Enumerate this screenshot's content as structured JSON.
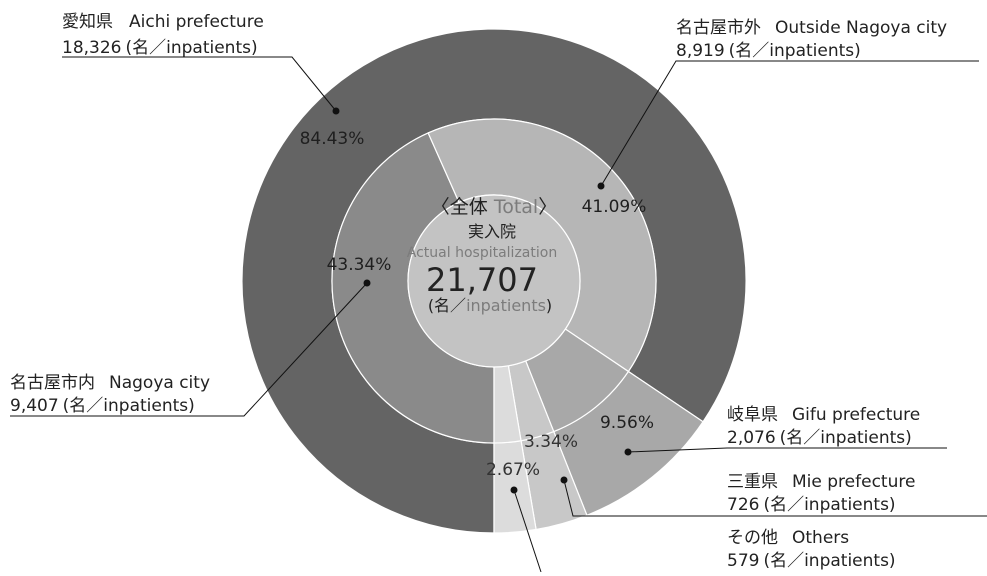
{
  "chart_data": {
    "type": "pie",
    "center": {
      "line1_prefix": "〈全体 ",
      "line1_en": "Total",
      "line1_suffix": "〉",
      "line2": "実入院",
      "line3": "Actual hospitalization",
      "total": "21,707",
      "unit_open": "(名／",
      "unit_en": "inpatients",
      "unit_close": ")"
    },
    "outer_ring": [
      {
        "label_ja": "愛知県",
        "label_en": "Aichi prefecture",
        "count": "18,326",
        "unit": "(名／inpatients)",
        "percent": 84.43,
        "percent_label": "84.43%",
        "color": "#646464"
      },
      {
        "label_ja": "岐阜県",
        "label_en": "Gifu prefecture",
        "count": "2,076",
        "unit": "(名／inpatients)",
        "percent": 9.56,
        "percent_label": "9.56%",
        "color": "#a8a8a8"
      },
      {
        "label_ja": "三重県",
        "label_en": "Mie prefecture",
        "count": "726",
        "unit": "(名／inpatients)",
        "percent": 3.34,
        "percent_label": "3.34%",
        "color": "#c8c8c8"
      },
      {
        "label_ja": "その他",
        "label_en": "Others",
        "count": "579",
        "unit": "(名／inpatients)",
        "percent": 2.67,
        "percent_label": "2.67%",
        "color": "#dcdcdc"
      }
    ],
    "inner_ring": [
      {
        "label_ja": "名古屋市外",
        "label_en": "Outside Nagoya city",
        "count": "8,919",
        "unit": "(名／inpatients)",
        "percent": 41.09,
        "percent_label": "41.09%",
        "color": "#b6b6b6"
      },
      {
        "label_ja": "名古屋市内",
        "label_en": "Nagoya city",
        "count": "9,407",
        "unit": "(名／inpatients)",
        "percent": 43.34,
        "percent_label": "43.34%",
        "color": "#8a8a8a"
      }
    ],
    "center_color": "#c3c3c3"
  }
}
